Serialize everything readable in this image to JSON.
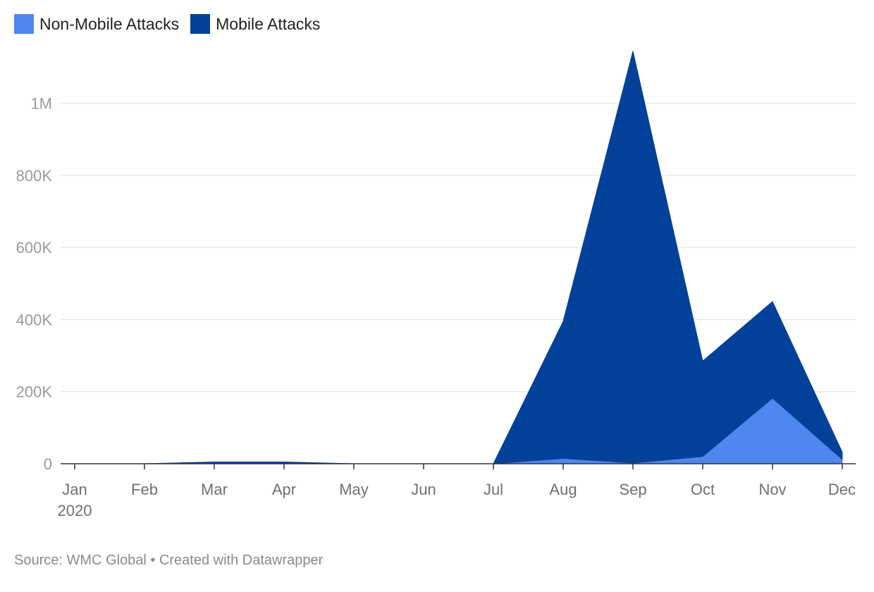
{
  "legend": {
    "items": [
      {
        "label": "Non-Mobile Attacks",
        "color": "#4e87ee"
      },
      {
        "label": "Mobile Attacks",
        "color": "#01419a"
      }
    ]
  },
  "source": "Source: WMC Global • Created with Datawrapper",
  "chart_data": {
    "type": "area",
    "stacked": true,
    "x": [
      "Jan",
      "Feb",
      "Mar",
      "Apr",
      "May",
      "Jun",
      "Jul",
      "Aug",
      "Sep",
      "Oct",
      "Nov",
      "Dec"
    ],
    "x_tick_labels": [
      "Jan",
      "Feb",
      "Mar",
      "Apr",
      "May",
      "Jun",
      "Jul",
      "Aug",
      "Sep",
      "Oct",
      "Nov",
      "Dec"
    ],
    "x_year_label": "2020",
    "series": [
      {
        "name": "Non-Mobile Attacks",
        "color": "#4e87ee",
        "values": [
          0,
          0,
          1000,
          1000,
          0,
          0,
          0,
          15000,
          2000,
          20000,
          182000,
          12000
        ]
      },
      {
        "name": "Mobile Attacks",
        "color": "#01419a",
        "values": [
          0,
          0,
          4000,
          4000,
          0,
          0,
          0,
          380000,
          1143000,
          265000,
          268000,
          20000
        ]
      }
    ],
    "ylim": [
      0,
      1150000
    ],
    "y_ticks": [
      0,
      200000,
      400000,
      600000,
      800000,
      1000000
    ],
    "y_tick_labels": [
      "0",
      "200K",
      "400K",
      "600K",
      "800K",
      "1M"
    ],
    "grid": true,
    "legend_position": "top-left"
  }
}
